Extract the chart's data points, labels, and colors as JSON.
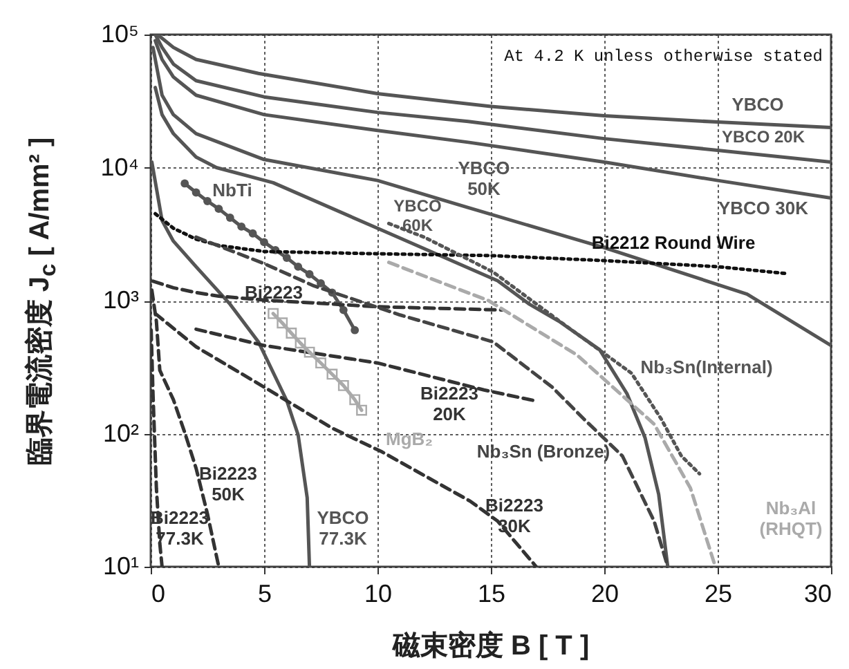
{
  "chart_data": {
    "type": "line",
    "xlabel": "磁束密度 B [ T ]",
    "ylabel": "臨界電流密度 J$_{c}$ [ A/mm² ]",
    "log": "y",
    "grid": true,
    "xlim": [
      0,
      30
    ],
    "xticks": [
      0,
      5,
      10,
      15,
      20,
      25,
      30
    ],
    "ylim": [
      10,
      100000
    ],
    "yticks": [
      {
        "value": 10,
        "label": "10¹"
      },
      {
        "value": 100,
        "label": "10²"
      },
      {
        "value": 1000,
        "label": "10³"
      },
      {
        "value": 10000,
        "label": "10⁴"
      },
      {
        "value": 100000,
        "label": "10⁵"
      }
    ],
    "series": [
      {
        "name": "YBCO",
        "color": "#555555",
        "line_style": "solid",
        "marker": "none",
        "x": [
          0.3,
          1,
          2,
          4.75,
          10,
          15,
          20,
          25,
          30
        ],
        "values": [
          100000,
          80000,
          65000,
          51000,
          36000,
          28800,
          24500,
          22000,
          20000
        ]
      },
      {
        "name": "YBCO 20K",
        "color": "#555555",
        "line_style": "solid",
        "marker": "none",
        "x": [
          0.2,
          0.5,
          1,
          2,
          5,
          10,
          14,
          20,
          25,
          30
        ],
        "values": [
          100000,
          80000,
          60000,
          45000,
          34000,
          26000,
          22200,
          16500,
          13500,
          11000
        ]
      },
      {
        "name": "YBCO 30K",
        "color": "#555555",
        "line_style": "solid",
        "marker": "none",
        "x": [
          0.2,
          0.5,
          1,
          2,
          5,
          10,
          14,
          20,
          25,
          30
        ],
        "values": [
          90000,
          65000,
          48000,
          35000,
          25000,
          19000,
          15500,
          11000,
          8000,
          5900
        ]
      },
      {
        "name": "YBCO\n50K",
        "color": "#555555",
        "line_style": "solid",
        "marker": "none",
        "x": [
          0.1,
          0.5,
          1,
          2,
          5,
          10,
          14,
          20,
          26.3,
          30
        ],
        "values": [
          80000,
          35000,
          25000,
          18000,
          11500,
          8000,
          5000,
          2500,
          1120,
          460
        ]
      },
      {
        "name": "YBCO\n60K",
        "color": "#555555",
        "line_style": "solid",
        "marker": "none",
        "x": [
          0.2,
          0.5,
          1,
          2,
          2.9,
          5.4,
          10,
          15.3,
          16.7,
          18,
          19.8,
          21,
          21.8,
          22.4,
          22.8
        ],
        "values": [
          40000,
          25000,
          18000,
          12000,
          10000,
          7700,
          3500,
          1410,
          940,
          700,
          427,
          200,
          93,
          35,
          10
        ]
      },
      {
        "name": "YBCO\n77.3K",
        "color": "#555555",
        "line_style": "solid",
        "marker": "none",
        "x": [
          0.05,
          0.5,
          1,
          2,
          3.5,
          4.75,
          6,
          6.5,
          6.9,
          7
        ],
        "values": [
          11000,
          4000,
          2800,
          1800,
          940,
          490,
          177,
          98,
          33,
          10
        ]
      },
      {
        "name": "NbTi",
        "color": "#555555",
        "line_style": "solid",
        "marker": "circle",
        "x": [
          1.5,
          2,
          2.5,
          3,
          3.5,
          4,
          4.5,
          5,
          5.5,
          6,
          6.5,
          7,
          7.5,
          8,
          8.5,
          9
        ],
        "values": [
          7600,
          6500,
          5600,
          4900,
          4200,
          3600,
          3200,
          2750,
          2400,
          2100,
          1800,
          1580,
          1350,
          1150,
          850,
          600
        ]
      },
      {
        "name": "Bi2212 Round Wire",
        "color": "#111111",
        "line_style": "dotted",
        "marker": "none",
        "x": [
          0.2,
          1,
          2,
          3,
          5,
          10,
          15,
          20,
          25,
          28
        ],
        "values": [
          4500,
          3500,
          2900,
          2600,
          2340,
          2250,
          2180,
          2000,
          1800,
          1600
        ]
      },
      {
        "name": "Bi2223",
        "color": "#333333",
        "line_style": "dashed",
        "marker": "none",
        "x": [
          0.1,
          1,
          2,
          3,
          5,
          10,
          15.5
        ],
        "values": [
          1400,
          1250,
          1150,
          1080,
          1010,
          900,
          850
        ]
      },
      {
        "name": "Bi2223\n20K",
        "color": "#333333",
        "line_style": "dashed",
        "marker": "none",
        "x": [
          2,
          5,
          10,
          14.7,
          17
        ],
        "values": [
          610,
          460,
          340,
          213,
          176
        ]
      },
      {
        "name": "Bi2223\n30K",
        "color": "#333333",
        "line_style": "dashed",
        "marker": "none",
        "x": [
          0.2,
          2,
          5,
          8,
          10.2,
          14.1,
          15.3,
          17
        ],
        "values": [
          800,
          450,
          224,
          110,
          73,
          31,
          22,
          10
        ]
      },
      {
        "name": "Bi2223\n50K",
        "color": "#333333",
        "line_style": "dashed",
        "marker": "none",
        "x": [
          0.05,
          0.25,
          0.4,
          1,
          1.5,
          2,
          2.5,
          3
        ],
        "values": [
          1200,
          700,
          300,
          180,
          102,
          55,
          25,
          10
        ]
      },
      {
        "name": "Bi2223\n77.3K",
        "color": "#333333",
        "line_style": "dashed",
        "marker": "none",
        "x": [
          0.02,
          0.1,
          0.25,
          0.4,
          0.5
        ],
        "values": [
          600,
          200,
          39,
          15,
          10
        ]
      },
      {
        "name": "MgB₂",
        "color": "#aaaaaa",
        "line_style": "solid",
        "marker": "square",
        "x": [
          5.4,
          5.8,
          6.2,
          6.6,
          7,
          7.5,
          8,
          8.5,
          9,
          9.3
        ],
        "values": [
          800,
          680,
          570,
          480,
          410,
          340,
          280,
          230,
          180,
          150
        ]
      },
      {
        "name": "Nb₃Sn (Bronze)",
        "color": "#444444",
        "line_style": "dashed",
        "marker": "none",
        "x": [
          2,
          5,
          7.2,
          11,
          15.1,
          17.7,
          19.1,
          20.8,
          22.2,
          22.8
        ],
        "values": [
          3000,
          1900,
          1290,
          780,
          490,
          224,
          129,
          68,
          22,
          10
        ]
      },
      {
        "name": "Nb₃Sn(Internal)",
        "color": "#555555",
        "line_style": "dotted",
        "marker": "none",
        "x": [
          10.5,
          12.1,
          15.1,
          18.4,
          21.2,
          22.5,
          23.4,
          24.2
        ],
        "values": [
          3800,
          2980,
          1640,
          630,
          285,
          130,
          68,
          50
        ]
      },
      {
        "name": "Nb₃Al\n(RHQT)",
        "color": "#aaaaaa",
        "line_style": "dashed",
        "marker": "none",
        "x": [
          10.5,
          11.6,
          14.9,
          18.8,
          22.2,
          23.8,
          24.9
        ],
        "values": [
          1940,
          1640,
          1000,
          390,
          118,
          39,
          10
        ]
      }
    ],
    "annotations": [
      "At 4.2 K unless otherwise stated"
    ]
  }
}
